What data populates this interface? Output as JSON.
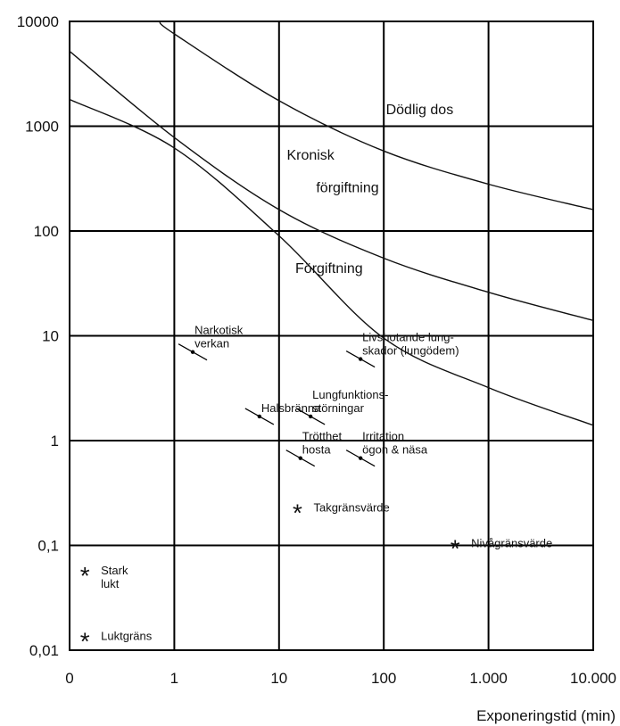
{
  "chart_data": {
    "type": "line",
    "xlabel": "Exponeringstid (min)",
    "ylabel": "",
    "x_scale": "log",
    "y_scale": "log",
    "xlim": [
      0.1,
      10000
    ],
    "ylim": [
      0.01,
      10000
    ],
    "grid": true,
    "x_ticks": [
      {
        "v": 0.1,
        "label": "0"
      },
      {
        "v": 1,
        "label": "1"
      },
      {
        "v": 10,
        "label": "10"
      },
      {
        "v": 100,
        "label": "100"
      },
      {
        "v": 1000,
        "label": "1.000"
      },
      {
        "v": 10000,
        "label": "10.000"
      }
    ],
    "y_ticks": [
      {
        "v": 0.01,
        "label": "0,01"
      },
      {
        "v": 0.1,
        "label": "0,1"
      },
      {
        "v": 1,
        "label": "1"
      },
      {
        "v": 10,
        "label": "10"
      },
      {
        "v": 100,
        "label": "100"
      },
      {
        "v": 1000,
        "label": "1000"
      },
      {
        "v": 10000,
        "label": "10000"
      }
    ],
    "series": [
      {
        "x": [
          0.1,
          1,
          10,
          100,
          1000,
          10000
        ],
        "y": [
          1800,
          620,
          90,
          9.5,
          3.2,
          1.4
        ]
      },
      {
        "x": [
          0.1,
          1,
          10,
          100,
          1000,
          10000
        ],
        "y": [
          5200,
          780,
          160,
          55,
          26,
          14
        ]
      },
      {
        "x": [
          0.72,
          1,
          10,
          100,
          1000,
          10000
        ],
        "y": [
          10000,
          7600,
          1750,
          580,
          280,
          160
        ]
      }
    ],
    "region_labels": [
      {
        "label": "Dödlig dos",
        "x": 220,
        "y": 1300
      },
      {
        "label": "Kronisk",
        "x": 20,
        "y": 480
      },
      {
        "label": "förgiftning",
        "x": 45,
        "y": 235
      },
      {
        "label": "Förgiftning",
        "x": 30,
        "y": 40
      }
    ],
    "effect_points": [
      {
        "lines": [
          "Narkotisk",
          "verkan"
        ],
        "x": 1.5,
        "y": 7
      },
      {
        "lines": [
          "Livshotande lung-",
          "skador (lungödem)"
        ],
        "x": 60,
        "y": 6
      },
      {
        "lines": [
          "Halsbränna"
        ],
        "x": 6.5,
        "y": 1.7
      },
      {
        "lines": [
          "Lungfunktions-",
          "störningar"
        ],
        "x": 20,
        "y": 1.7
      },
      {
        "lines": [
          "Trötthet",
          "hosta"
        ],
        "x": 16,
        "y": 0.68
      },
      {
        "lines": [
          "Irritation",
          "ögon & näsa"
        ],
        "x": 60,
        "y": 0.68
      }
    ],
    "limit_markers": [
      {
        "lines": [
          "Takgränsvärde"
        ],
        "x": 15,
        "y": 0.22
      },
      {
        "lines": [
          "Nivågränsvärde"
        ],
        "x": 480,
        "y": 0.1
      },
      {
        "lines": [
          "Stark",
          "lukt"
        ],
        "x": 0.14,
        "y": 0.055
      },
      {
        "lines": [
          "Luktgräns"
        ],
        "x": 0.14,
        "y": 0.013
      }
    ]
  }
}
